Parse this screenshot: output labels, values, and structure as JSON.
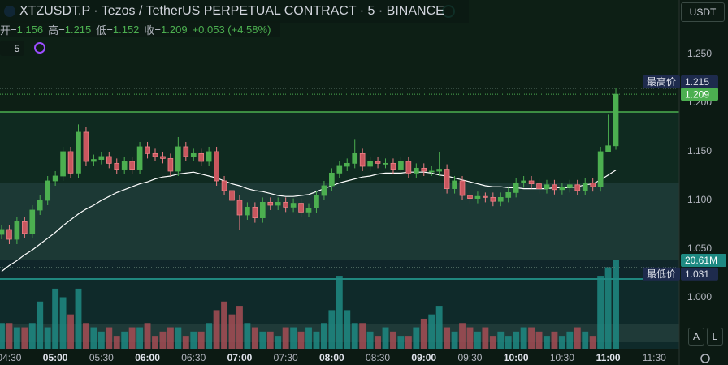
{
  "chart_data": {
    "type": "candlestick",
    "title": "XTZUSDT.P · Tezos / TetherUS PERPETUAL CONTRACT · 5 · BINANCE",
    "ohlc_labels": [
      "开=",
      "高=",
      "低=",
      "收="
    ],
    "change": "+0.053 (+4.58%)",
    "open": [
      1.065,
      1.07,
      1.06,
      1.078,
      1.066,
      1.09,
      1.1,
      1.12,
      1.125,
      1.15,
      1.128,
      1.17,
      1.14,
      1.142,
      1.145,
      1.138,
      1.132,
      1.14,
      1.132,
      1.155,
      1.148,
      1.145,
      1.143,
      1.13,
      1.155,
      1.145,
      1.148,
      1.14,
      1.15,
      1.12,
      1.11,
      1.1,
      1.085,
      1.093,
      1.082,
      1.098,
      1.095,
      1.098,
      1.093,
      1.097,
      1.088,
      1.092,
      1.105,
      1.115,
      1.128,
      1.135,
      1.138,
      1.148,
      1.135,
      1.14,
      1.138,
      1.138,
      1.132,
      1.14,
      1.128,
      1.133,
      1.13,
      1.13,
      1.132,
      1.112,
      1.12,
      1.105,
      1.102,
      1.104,
      1.103,
      1.099,
      1.103,
      1.108,
      1.118,
      1.12,
      1.117,
      1.112,
      1.116,
      1.111,
      1.113,
      1.116,
      1.11,
      1.118,
      1.114,
      1.15,
      1.156
    ],
    "high": [
      1.075,
      1.075,
      1.083,
      1.083,
      1.095,
      1.105,
      1.125,
      1.13,
      1.155,
      1.155,
      1.178,
      1.175,
      1.147,
      1.15,
      1.15,
      1.143,
      1.145,
      1.145,
      1.16,
      1.16,
      1.153,
      1.15,
      1.148,
      1.165,
      1.16,
      1.153,
      1.153,
      1.155,
      1.155,
      1.125,
      1.115,
      1.105,
      1.098,
      1.098,
      1.103,
      1.103,
      1.103,
      1.103,
      1.102,
      1.102,
      1.097,
      1.11,
      1.12,
      1.133,
      1.14,
      1.143,
      1.163,
      1.153,
      1.145,
      1.145,
      1.143,
      1.143,
      1.145,
      1.145,
      1.138,
      1.138,
      1.135,
      1.15,
      1.137,
      1.125,
      1.125,
      1.11,
      1.109,
      1.108,
      1.108,
      1.108,
      1.113,
      1.123,
      1.125,
      1.125,
      1.122,
      1.121,
      1.121,
      1.118,
      1.121,
      1.121,
      1.123,
      1.123,
      1.155,
      1.188,
      1.215
    ],
    "low": [
      1.06,
      1.055,
      1.055,
      1.061,
      1.061,
      1.085,
      1.095,
      1.115,
      1.12,
      1.123,
      1.123,
      1.135,
      1.135,
      1.137,
      1.133,
      1.127,
      1.127,
      1.127,
      1.127,
      1.143,
      1.14,
      1.138,
      1.125,
      1.125,
      1.14,
      1.14,
      1.135,
      1.135,
      1.115,
      1.105,
      1.095,
      1.07,
      1.08,
      1.077,
      1.077,
      1.09,
      1.09,
      1.088,
      1.088,
      1.083,
      1.083,
      1.087,
      1.1,
      1.11,
      1.123,
      1.13,
      1.133,
      1.13,
      1.13,
      1.133,
      1.133,
      1.127,
      1.127,
      1.123,
      1.123,
      1.125,
      1.125,
      1.125,
      1.107,
      1.107,
      1.1,
      1.097,
      1.097,
      1.098,
      1.094,
      1.094,
      1.098,
      1.103,
      1.113,
      1.112,
      1.107,
      1.107,
      1.106,
      1.106,
      1.108,
      1.105,
      1.105,
      1.109,
      1.109,
      1.15,
      1.152
    ],
    "close": [
      1.07,
      1.06,
      1.078,
      1.066,
      1.09,
      1.1,
      1.12,
      1.125,
      1.15,
      1.128,
      1.17,
      1.14,
      1.142,
      1.145,
      1.138,
      1.132,
      1.14,
      1.132,
      1.155,
      1.148,
      1.145,
      1.143,
      1.13,
      1.155,
      1.145,
      1.148,
      1.14,
      1.15,
      1.12,
      1.11,
      1.1,
      1.085,
      1.093,
      1.082,
      1.098,
      1.095,
      1.098,
      1.093,
      1.097,
      1.088,
      1.092,
      1.105,
      1.115,
      1.128,
      1.135,
      1.138,
      1.148,
      1.135,
      1.14,
      1.138,
      1.138,
      1.132,
      1.14,
      1.128,
      1.133,
      1.13,
      1.13,
      1.132,
      1.112,
      1.12,
      1.105,
      1.102,
      1.104,
      1.103,
      1.099,
      1.103,
      1.108,
      1.118,
      1.12,
      1.117,
      1.112,
      1.116,
      1.111,
      1.113,
      1.116,
      1.11,
      1.118,
      1.114,
      1.15,
      1.156,
      1.209
    ],
    "volume": [
      6,
      6,
      5,
      5,
      6,
      11,
      5,
      14,
      12,
      8,
      14,
      6,
      5,
      4,
      5,
      3,
      4,
      5,
      5,
      6,
      3,
      4,
      5,
      5,
      3,
      4,
      4,
      6,
      9,
      11,
      8,
      10,
      6,
      5,
      4,
      4,
      3,
      5,
      5,
      4,
      5,
      4,
      6,
      9,
      17,
      9,
      6,
      6,
      4,
      3,
      5,
      4,
      3,
      3,
      5,
      7,
      8,
      10,
      5,
      4,
      6,
      5,
      4,
      5,
      3,
      4,
      3,
      4,
      5,
      5,
      4,
      3,
      4,
      3,
      4,
      5,
      4,
      3,
      17,
      19,
      20.61
    ],
    "volume_label": "20.61M",
    "ma": [
      1.027,
      1.033,
      1.038,
      1.044,
      1.049,
      1.055,
      1.061,
      1.067,
      1.074,
      1.08,
      1.086,
      1.091,
      1.095,
      1.1,
      1.104,
      1.108,
      1.111,
      1.114,
      1.117,
      1.119,
      1.122,
      1.124,
      1.125,
      1.127,
      1.128,
      1.129,
      1.127,
      1.125,
      1.123,
      1.12,
      1.117,
      1.115,
      1.112,
      1.11,
      1.109,
      1.107,
      1.105,
      1.104,
      1.104,
      1.105,
      1.106,
      1.109,
      1.112,
      1.115,
      1.118,
      1.12,
      1.122,
      1.124,
      1.125,
      1.127,
      1.128,
      1.128,
      1.128,
      1.129,
      1.129,
      1.129,
      1.128,
      1.126,
      1.125,
      1.123,
      1.121,
      1.119,
      1.117,
      1.115,
      1.114,
      1.114,
      1.113,
      1.113,
      1.112,
      1.112,
      1.112,
      1.112,
      1.113,
      1.113,
      1.113,
      1.114,
      1.116,
      1.117,
      1.121,
      1.126,
      1.131
    ],
    "up_color": "#4caf50",
    "down_color": "#ef7f86",
    "ma_color": "#ffffff",
    "volume_up_color": "#1e8a82",
    "volume_down_color": "#a64d55",
    "ylim": [
      0.9475,
      1.3058
    ],
    "yticks": [
      {
        "value": 1.25,
        "label": "1.250"
      },
      {
        "value": 1.2,
        "label": "1.200"
      },
      {
        "value": 1.15,
        "label": "1.150"
      },
      {
        "value": 1.1,
        "label": "1.100"
      },
      {
        "value": 1.05,
        "label": "1.050"
      },
      {
        "value": 1.0,
        "label": "1.000"
      }
    ],
    "xlim": [
      -0.21,
      88.25
    ],
    "xticks": [
      {
        "value": 1,
        "label": "04:30"
      },
      {
        "value": 7,
        "label": "05:00",
        "bold": true
      },
      {
        "value": 13,
        "label": "05:30"
      },
      {
        "value": 19,
        "label": "06:00",
        "bold": true
      },
      {
        "value": 25,
        "label": "06:30"
      },
      {
        "value": 31,
        "label": "07:00",
        "bold": true
      },
      {
        "value": 37,
        "label": "07:30"
      },
      {
        "value": 43,
        "label": "08:00",
        "bold": true
      },
      {
        "value": 49,
        "label": "08:30"
      },
      {
        "value": 55,
        "label": "09:00",
        "bold": true
      },
      {
        "value": 61,
        "label": "09:30"
      },
      {
        "value": 67,
        "label": "10:00",
        "bold": true
      },
      {
        "value": 73,
        "label": "10:30"
      },
      {
        "value": 79,
        "label": "11:00",
        "bold": true
      },
      {
        "value": 85,
        "label": "11:30"
      }
    ],
    "vol_lim": [
      0,
      24
    ],
    "high_label": "最高价",
    "high_value": 1.215,
    "low_label": "最低价",
    "low_value": 1.031,
    "last": 1.209
  },
  "ui": {
    "currency": "USDT",
    "interval": "5",
    "buttons": [
      "A",
      "L"
    ]
  }
}
